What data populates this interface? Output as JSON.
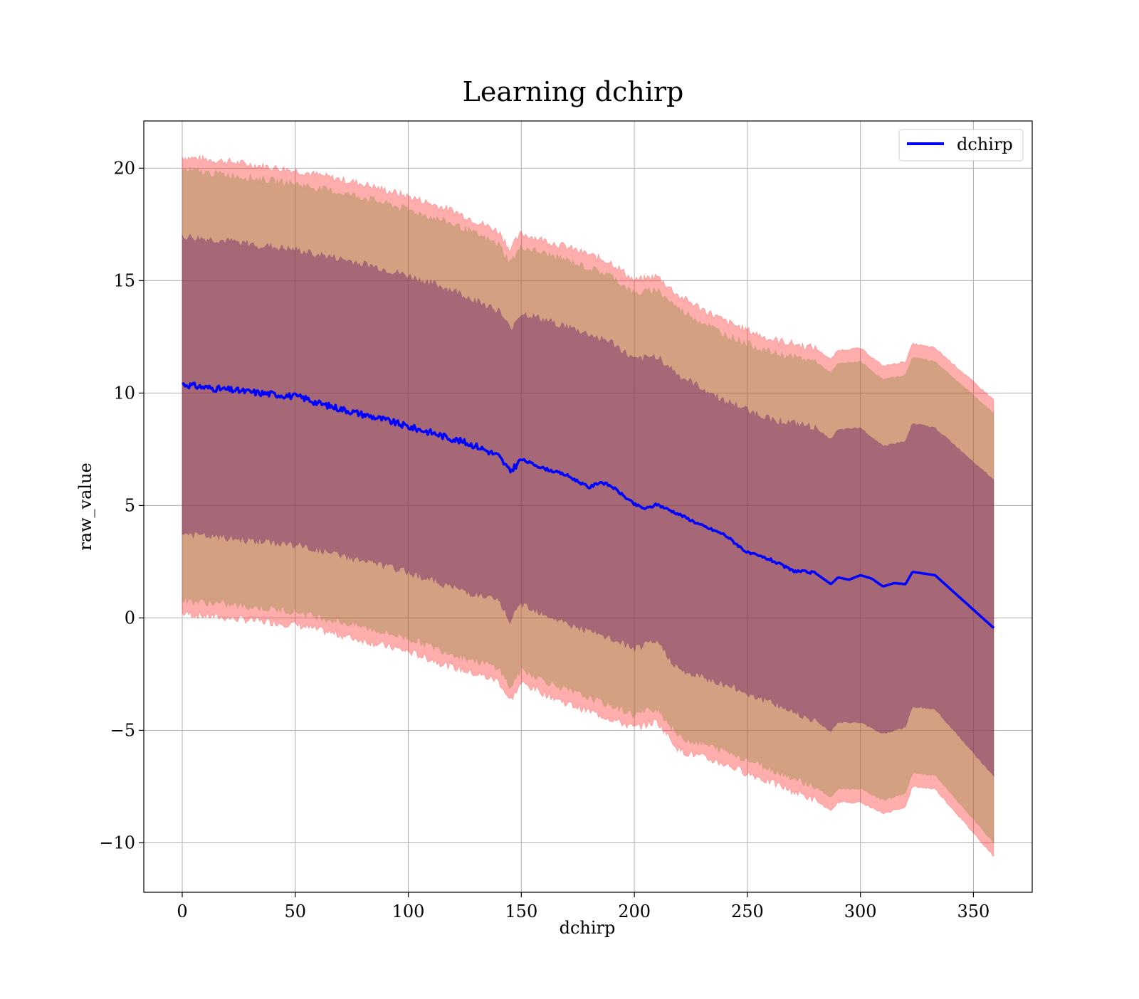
{
  "chart_data": {
    "type": "line",
    "title": "Learning dchirp",
    "xlabel": "dchirp",
    "ylabel": "raw_value",
    "xlim": [
      -17,
      376
    ],
    "ylim": [
      -12.2,
      22.1
    ],
    "xticks": [
      0,
      50,
      100,
      150,
      200,
      250,
      300,
      350
    ],
    "yticks": [
      -10,
      -5,
      0,
      5,
      10,
      15,
      20
    ],
    "xtick_labels": [
      "0",
      "50",
      "100",
      "150",
      "200",
      "250",
      "300",
      "350"
    ],
    "ytick_labels": [
      "−10",
      "−5",
      "0",
      "5",
      "10",
      "15",
      "20"
    ],
    "grid": true,
    "legend": {
      "position": "top-right",
      "entries": [
        "dchirp"
      ]
    },
    "colors": {
      "line": "#0000ff",
      "band_outer": "#ff0000",
      "band_middle": "#8b8b3a",
      "band_inner": "#6a1b6a",
      "grid": "#b0b0b0"
    },
    "mean": {
      "name": "dchirp",
      "x": [
        0,
        10,
        20,
        30,
        40,
        50,
        55,
        60,
        70,
        80,
        90,
        100,
        110,
        120,
        130,
        140,
        145,
        150,
        160,
        170,
        180,
        185,
        190,
        200,
        205,
        210,
        220,
        230,
        240,
        250,
        260,
        270,
        280,
        287,
        290,
        295,
        300,
        305,
        310,
        315,
        320,
        323,
        333,
        359
      ],
      "y": [
        10.4,
        10.25,
        10.15,
        10.05,
        9.95,
        9.85,
        9.75,
        9.55,
        9.3,
        9.05,
        8.8,
        8.5,
        8.25,
        7.95,
        7.65,
        7.2,
        6.5,
        7.05,
        6.65,
        6.35,
        5.8,
        6.05,
        5.85,
        5.05,
        4.85,
        5.05,
        4.6,
        4.1,
        3.7,
        2.9,
        2.6,
        2.1,
        2.0,
        1.5,
        1.8,
        1.7,
        1.9,
        1.75,
        1.4,
        1.55,
        1.5,
        2.05,
        1.9,
        -0.45
      ]
    },
    "bands": [
      {
        "label": "outer",
        "x": [
          0,
          20,
          50,
          80,
          100,
          120,
          140,
          145,
          150,
          170,
          190,
          200,
          210,
          220,
          240,
          260,
          280,
          287,
          290,
          300,
          310,
          320,
          323,
          333,
          359
        ],
        "upper": [
          20.5,
          20.3,
          19.9,
          19.3,
          18.75,
          18.1,
          17.2,
          16.4,
          17.1,
          16.5,
          15.8,
          15.0,
          15.2,
          14.3,
          13.2,
          12.4,
          12.0,
          11.5,
          11.9,
          12.0,
          11.2,
          11.4,
          12.2,
          12.0,
          9.7
        ],
        "lower": [
          0.2,
          0.0,
          -0.3,
          -1.0,
          -1.5,
          -2.2,
          -2.8,
          -3.7,
          -2.9,
          -3.8,
          -4.5,
          -4.9,
          -4.6,
          -5.9,
          -6.5,
          -7.3,
          -8.1,
          -8.6,
          -8.2,
          -8.2,
          -8.7,
          -8.4,
          -7.5,
          -7.6,
          -10.6
        ]
      },
      {
        "label": "middle",
        "x": [
          0,
          20,
          50,
          80,
          100,
          120,
          140,
          145,
          150,
          170,
          190,
          200,
          210,
          220,
          240,
          260,
          280,
          287,
          290,
          300,
          310,
          320,
          323,
          333,
          359
        ],
        "upper": [
          19.9,
          19.7,
          19.3,
          18.7,
          18.15,
          17.5,
          16.6,
          15.8,
          16.5,
          15.9,
          15.2,
          14.4,
          14.6,
          13.7,
          12.6,
          11.8,
          11.4,
          10.9,
          11.3,
          11.4,
          10.6,
          10.8,
          11.6,
          11.4,
          9.1
        ],
        "lower": [
          0.8,
          0.6,
          0.3,
          -0.4,
          -0.9,
          -1.6,
          -2.2,
          -3.1,
          -2.3,
          -3.2,
          -3.9,
          -4.3,
          -4.0,
          -5.3,
          -5.9,
          -6.7,
          -7.5,
          -8.0,
          -7.6,
          -7.6,
          -8.1,
          -7.8,
          -6.9,
          -7.0,
          -10.0
        ]
      },
      {
        "label": "inner",
        "x": [
          0,
          20,
          50,
          80,
          100,
          120,
          140,
          145,
          150,
          170,
          190,
          200,
          210,
          220,
          240,
          260,
          280,
          287,
          290,
          300,
          310,
          320,
          323,
          333,
          359
        ],
        "upper": [
          16.95,
          16.75,
          16.35,
          15.75,
          15.2,
          14.55,
          13.65,
          12.85,
          13.55,
          12.95,
          12.25,
          11.45,
          11.65,
          10.75,
          9.65,
          8.85,
          8.45,
          7.95,
          8.35,
          8.45,
          7.65,
          7.85,
          8.65,
          8.45,
          6.15
        ],
        "lower": [
          3.75,
          3.55,
          3.25,
          2.55,
          2.05,
          1.35,
          0.75,
          -0.15,
          0.65,
          -0.25,
          -0.95,
          -1.35,
          -1.05,
          -2.35,
          -2.95,
          -3.75,
          -4.55,
          -5.05,
          -4.65,
          -4.65,
          -5.15,
          -4.85,
          -3.95,
          -4.05,
          -7.05
        ]
      }
    ]
  }
}
